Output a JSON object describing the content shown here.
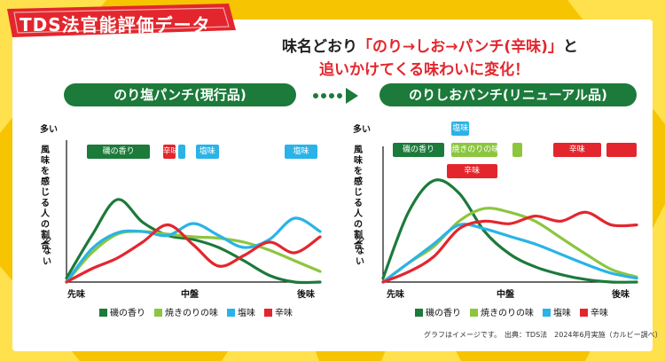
{
  "badge": "TDS法官能評価データ",
  "headline": {
    "line1_prefix": "味名どおり",
    "line1_highlight": "「のり→しお→パンチ(辛味)」",
    "line1_suffix": "と",
    "line2": "追いかけてくる味わいに変化！"
  },
  "colors": {
    "green_dark": "#1c7a3a",
    "green_light": "#8cc63f",
    "blue": "#2ab3e6",
    "red": "#e3262d",
    "yellow": "#f6c400"
  },
  "panels": {
    "left_title": "のり塩パンチ(現行品)",
    "right_title": "のりしおパンチ(リニューアル品)"
  },
  "axis": {
    "y_top": "多い",
    "y_bottom": "少ない",
    "y_label": "風味を感じる人の割合",
    "x_start": "先味",
    "x_mid": "中盤",
    "x_end": "後味"
  },
  "legend": [
    "磯の香り",
    "焼きのりの味",
    "塩味",
    "辛味"
  ],
  "credit": "グラフはイメージです。　出典：TDS法　2024年6月実施（カルビー調べ）",
  "chart_data": [
    {
      "type": "line",
      "title": "のり塩パンチ(現行品)",
      "xlabel": "",
      "ylabel": "風味を感じる人の割合",
      "x": [
        0,
        0.1,
        0.2,
        0.3,
        0.4,
        0.5,
        0.6,
        0.7,
        0.8,
        0.9,
        1.0
      ],
      "ylim": [
        0,
        1
      ],
      "series": [
        {
          "name": "磯の香り",
          "color": "#1c7a3a",
          "values": [
            0.03,
            0.35,
            0.62,
            0.45,
            0.35,
            0.32,
            0.26,
            0.16,
            0.05,
            0.0,
            0.0
          ]
        },
        {
          "name": "焼きのりの味",
          "color": "#8cc63f",
          "values": [
            0.0,
            0.22,
            0.36,
            0.38,
            0.36,
            0.34,
            0.33,
            0.3,
            0.24,
            0.16,
            0.08
          ]
        },
        {
          "name": "塩味",
          "color": "#2ab3e6",
          "values": [
            0.0,
            0.25,
            0.37,
            0.38,
            0.35,
            0.44,
            0.35,
            0.26,
            0.32,
            0.48,
            0.38
          ]
        },
        {
          "name": "辛味",
          "color": "#e3262d",
          "values": [
            0.0,
            0.1,
            0.18,
            0.3,
            0.43,
            0.28,
            0.12,
            0.2,
            0.3,
            0.22,
            0.34
          ]
        }
      ],
      "annotations": [
        {
          "series": "磯の香り",
          "label": "磯の香り",
          "from": 0.08,
          "to": 0.33
        },
        {
          "series": "辛味",
          "label": "辛味",
          "from": 0.38,
          "to": 0.43
        },
        {
          "series": "塩味",
          "label": "",
          "from": 0.44,
          "to": 0.47
        },
        {
          "series": "塩味",
          "label": "塩味",
          "from": 0.51,
          "to": 0.6
        },
        {
          "series": "塩味",
          "label": "塩味",
          "from": 0.86,
          "to": 0.99
        }
      ]
    },
    {
      "type": "line",
      "title": "のりしおパンチ(リニューアル品)",
      "xlabel": "",
      "ylabel": "風味を感じる人の割合",
      "x": [
        0,
        0.1,
        0.2,
        0.3,
        0.4,
        0.5,
        0.6,
        0.7,
        0.8,
        0.9,
        1.0
      ],
      "ylim": [
        0,
        1
      ],
      "series": [
        {
          "name": "磯の香り",
          "color": "#1c7a3a",
          "values": [
            0.03,
            0.55,
            0.8,
            0.7,
            0.4,
            0.22,
            0.12,
            0.06,
            0.02,
            0.0,
            0.0
          ]
        },
        {
          "name": "焼きのりの味",
          "color": "#8cc63f",
          "values": [
            0.0,
            0.15,
            0.28,
            0.48,
            0.58,
            0.55,
            0.48,
            0.35,
            0.22,
            0.1,
            0.04
          ]
        },
        {
          "name": "塩味",
          "color": "#2ab3e6",
          "values": [
            0.0,
            0.15,
            0.3,
            0.45,
            0.42,
            0.36,
            0.3,
            0.22,
            0.14,
            0.07,
            0.03
          ]
        },
        {
          "name": "辛味",
          "color": "#e3262d",
          "values": [
            0.0,
            0.08,
            0.2,
            0.42,
            0.48,
            0.46,
            0.52,
            0.48,
            0.55,
            0.45,
            0.45
          ]
        }
      ],
      "annotations": [
        {
          "series": "塩味",
          "label": "塩味",
          "from": 0.27,
          "to": 0.34
        },
        {
          "series": "磯の香り",
          "label": "磯の香り",
          "from": 0.04,
          "to": 0.24
        },
        {
          "series": "焼きのりの味",
          "label": "焼きのりの味",
          "from": 0.27,
          "to": 0.45
        },
        {
          "series": "焼きのりの味",
          "label": "",
          "from": 0.51,
          "to": 0.55
        },
        {
          "series": "辛味",
          "label": "辛味",
          "from": 0.25,
          "to": 0.45
        },
        {
          "series": "辛味",
          "label": "辛味",
          "from": 0.67,
          "to": 0.86
        },
        {
          "series": "辛味",
          "label": "",
          "from": 0.88,
          "to": 1.0
        }
      ]
    }
  ]
}
